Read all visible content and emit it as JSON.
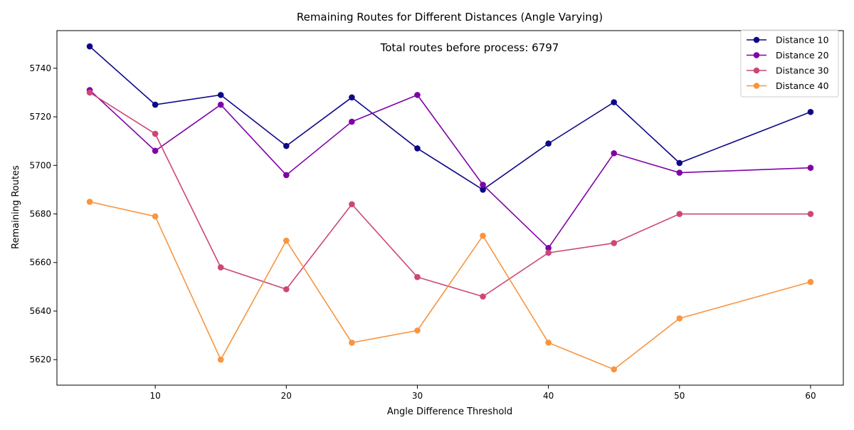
{
  "chart_data": {
    "type": "line",
    "title": "Remaining Routes for Different Distances (Angle Varying)",
    "xlabel": "Angle Difference Threshold",
    "ylabel": "Remaining Routes",
    "annotation": "Total routes before process: 6797",
    "x": [
      5,
      10,
      15,
      20,
      25,
      30,
      35,
      40,
      45,
      50,
      60
    ],
    "xlim": [
      2.5,
      62.5
    ],
    "ylim": [
      5609.5,
      5755.5
    ],
    "xticks": [
      10,
      20,
      30,
      40,
      50,
      60
    ],
    "yticks": [
      5620,
      5640,
      5660,
      5680,
      5700,
      5720,
      5740
    ],
    "grid": false,
    "legend_position": "top-right",
    "series": [
      {
        "name": "Distance 10",
        "color": "#0d0887",
        "values": [
          5749,
          5725,
          5729,
          5708,
          5728,
          5707,
          5690,
          5709,
          5726,
          5701,
          5722
        ]
      },
      {
        "name": "Distance 20",
        "color": "#7e03a8",
        "values": [
          5731,
          5706,
          5725,
          5696,
          5718,
          5729,
          5692,
          5666,
          5705,
          5697,
          5699
        ]
      },
      {
        "name": "Distance 30",
        "color": "#cc4778",
        "values": [
          5730,
          5713,
          5658,
          5649,
          5684,
          5654,
          5646,
          5664,
          5668,
          5680,
          5680
        ]
      },
      {
        "name": "Distance 40",
        "color": "#f89540",
        "values": [
          5685,
          5679,
          5620,
          5669,
          5627,
          5632,
          5671,
          5627,
          5616,
          5637,
          5652
        ]
      }
    ]
  }
}
